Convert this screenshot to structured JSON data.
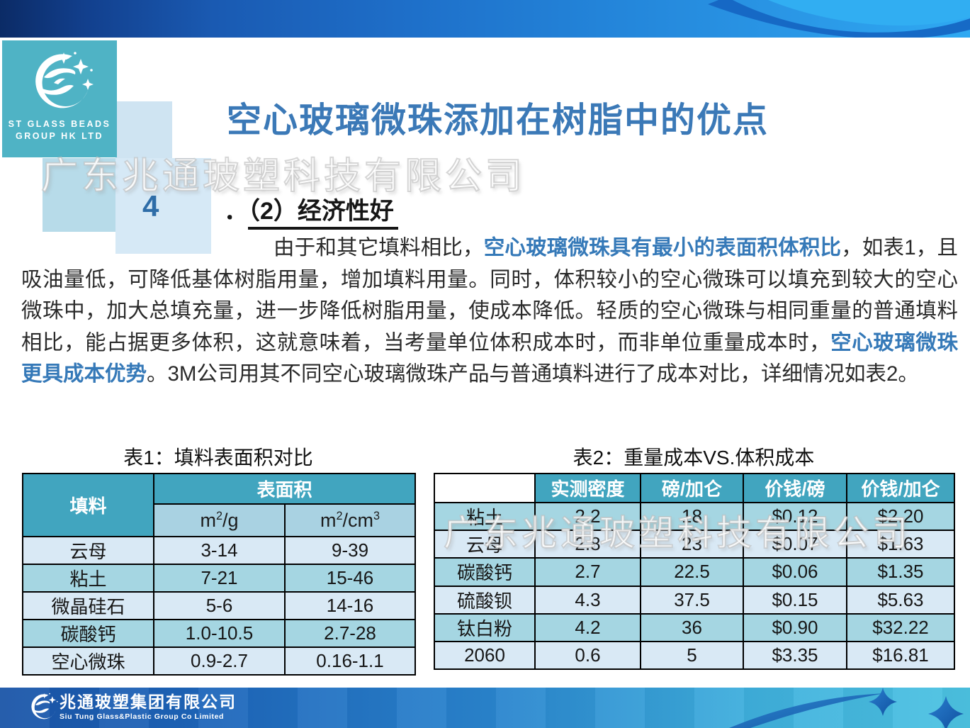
{
  "header": {
    "page_number": "4",
    "title": "空心玻璃微珠添加在树脂中的优点",
    "logo": {
      "icon": "crescent-swirl-sparkles",
      "line1": "ST GLASS BEADS",
      "line2": "GROUP HK LTD"
    }
  },
  "watermark": {
    "top": "广东兆通玻塑科技有限公司",
    "table": "广东兆通玻塑科技有限公司"
  },
  "section": {
    "prefix": "．",
    "heading": "（2）经济性好"
  },
  "paragraph": {
    "segments": [
      {
        "text": "由于和其它填料相比，",
        "emphasis": false
      },
      {
        "text": "空心玻璃微珠具有最小的表面积体积比",
        "emphasis": true
      },
      {
        "text": "，如表1，且吸油量低，可降低基体树脂用量，增加填料用量。同时，体积较小的空心微珠可以填充到较大的空心微珠中，加大总填充量，进一步降低树脂用量，使成本降低。轻质的空心微珠与相同重量的普通填料相比，能占据更多体积，这就意味着，当考量单位体积成本时，而非单位重量成本时，",
        "emphasis": false
      },
      {
        "text": "空心玻璃微珠更具成本优势",
        "emphasis": true
      },
      {
        "text": "。3M公司用其不同空心玻璃微珠产品与普通填料进行了成本对比，详细情况如表2。",
        "emphasis": false
      }
    ]
  },
  "table1": {
    "title": "表1：填料表面积对比",
    "corner_header": "填料",
    "group_header": "表面积",
    "sub_headers": [
      "m²/g",
      "m²/cm³"
    ],
    "rows": [
      {
        "label": "云母",
        "values": [
          "3-14",
          "9-39"
        ]
      },
      {
        "label": "粘土",
        "values": [
          "7-21",
          "15-46"
        ]
      },
      {
        "label": "微晶硅石",
        "values": [
          "5-6",
          "14-16"
        ]
      },
      {
        "label": "碳酸钙",
        "values": [
          "1.0-10.5",
          "2.7-28"
        ]
      },
      {
        "label": "空心微珠",
        "values": [
          "0.9-2.7",
          "0.16-1.1"
        ]
      }
    ]
  },
  "table2": {
    "title": "表2：重量成本VS.体积成本",
    "headers": [
      "",
      "实测密度",
      "磅/加仑",
      "价钱/磅",
      "价钱/加仑"
    ],
    "rows": [
      {
        "label": "粘土",
        "values": [
          "2.2",
          "18",
          "$0.12",
          "$2.20"
        ]
      },
      {
        "label": "云母",
        "values": [
          "2.8",
          "23",
          "$0.07",
          "$1.63"
        ]
      },
      {
        "label": "碳酸钙",
        "values": [
          "2.7",
          "22.5",
          "$0.06",
          "$1.35"
        ]
      },
      {
        "label": "硫酸钡",
        "values": [
          "4.3",
          "37.5",
          "$0.15",
          "$5.63"
        ]
      },
      {
        "label": "钛白粉",
        "values": [
          "4.2",
          "36",
          "$0.90",
          "$32.22"
        ]
      },
      {
        "label": "2060",
        "values": [
          "0.6",
          "5",
          "$3.35",
          "$16.81"
        ]
      }
    ]
  },
  "footer": {
    "company_cn": "兆通玻塑集团有限公司",
    "company_en": "Siu Tung Glass&Plastic Group Co Limited"
  },
  "colors": {
    "title_blue": "#3b79b7",
    "emphasis_blue": "#3579b8",
    "logo_teal": "#4fb3c5",
    "table_header_teal": "#41a5bf",
    "table_subheader": "#a9d2e2",
    "row_light": "#d9e9f5",
    "row_medium": "#a5d6e2",
    "banner_navy": "#0b2b66",
    "banner_cyan": "#2fa9f2",
    "footer_left_blue": "#1a55a8",
    "footer_right_cyan": "#4cc3e2"
  }
}
